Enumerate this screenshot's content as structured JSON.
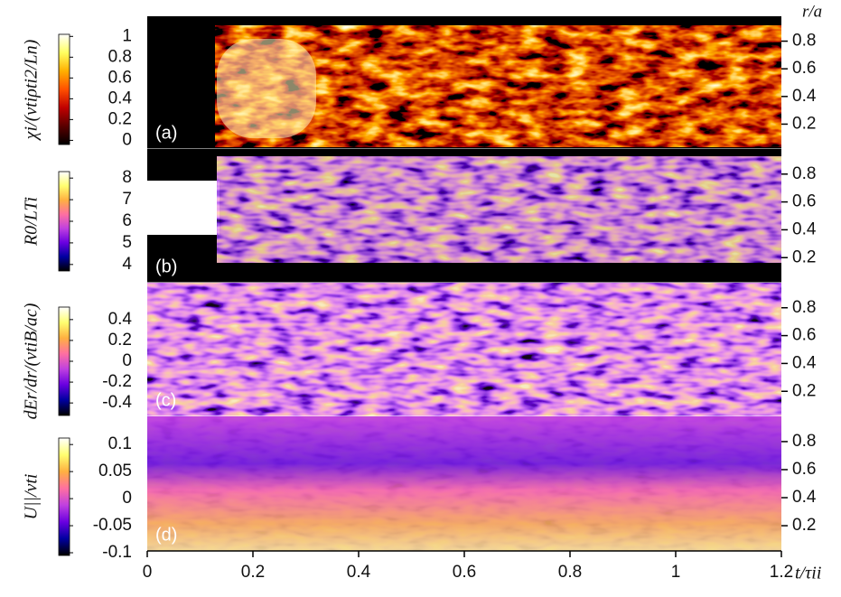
{
  "chart_data": [
    {
      "type": "heatmap",
      "panel_label": "(a)",
      "ylabel": "χi/(vtiρti2/Ln)",
      "right_axis_label": "r/a",
      "ylim": [
        0.02,
        0.98
      ],
      "yticks": [
        0.2,
        0.4,
        0.6,
        0.8
      ],
      "colorbar": {
        "lim": [
          -0.04,
          1.02
        ],
        "ticks": [
          0,
          0.2,
          0.4,
          0.6,
          0.8,
          1
        ],
        "colors": [
          "#000000",
          "#5a0000",
          "#c00000",
          "#ff5000",
          "#ffb000",
          "#ffff60",
          "#ffffff"
        ]
      }
    },
    {
      "type": "heatmap",
      "panel_label": "(b)",
      "ylabel": "R0/LTi",
      "ylim": [
        0.02,
        0.98
      ],
      "yticks": [
        0.2,
        0.4,
        0.6,
        0.8
      ],
      "colorbar": {
        "lim": [
          3.7,
          8.3
        ],
        "ticks": [
          4,
          5,
          6,
          7,
          8
        ],
        "colors": [
          "#000000",
          "#0000a0",
          "#6a00e0",
          "#c040e0",
          "#ff70a0",
          "#ffb040",
          "#ffff70",
          "#ffffff"
        ]
      }
    },
    {
      "type": "heatmap",
      "panel_label": "(c)",
      "ylabel": "dEr/dr/(vtiB/ac)",
      "ylim": [
        0.02,
        0.98
      ],
      "yticks": [
        0.2,
        0.4,
        0.6,
        0.8
      ],
      "colorbar": {
        "lim": [
          -0.52,
          0.52
        ],
        "ticks": [
          -0.4,
          -0.2,
          0,
          0.2,
          0.4
        ],
        "colors": [
          "#000000",
          "#0000a0",
          "#6a00e0",
          "#c040e0",
          "#ff70a0",
          "#ffb040",
          "#ffff70",
          "#ffffff"
        ]
      }
    },
    {
      "type": "heatmap",
      "panel_label": "(d)",
      "ylabel": "U||/vti",
      "ylim": [
        0.02,
        0.98
      ],
      "yticks": [
        0.2,
        0.4,
        0.6,
        0.8
      ],
      "colorbar": {
        "lim": [
          -0.105,
          0.112
        ],
        "ticks": [
          -0.1,
          -0.05,
          0,
          0.05,
          0.1
        ],
        "colors": [
          "#000000",
          "#0000a0",
          "#6a00e0",
          "#c040e0",
          "#ff70a0",
          "#ffb040",
          "#ffff70",
          "#ffffff"
        ]
      },
      "xlabel": "t/τii",
      "xlim": [
        0,
        1.2
      ],
      "xticks": [
        0,
        0.2,
        0.4,
        0.6,
        0.8,
        1,
        1.2
      ]
    }
  ]
}
